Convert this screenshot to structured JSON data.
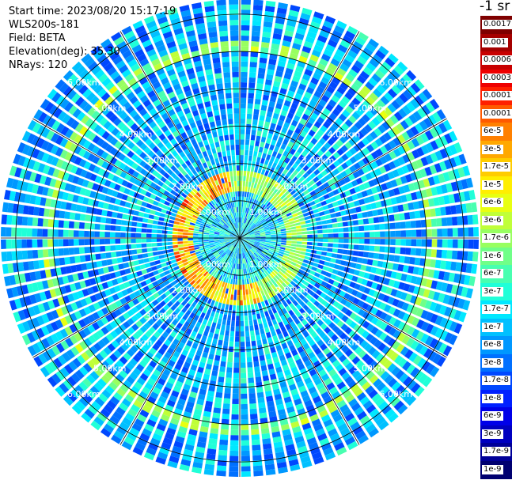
{
  "header": {
    "start_time": "Start time: 2023/08/20 15:17:19",
    "device": "WLS200s-181",
    "field": "Field: BETA",
    "elevation": "Elevation(deg): 35.30",
    "nrays": "NRays: 120"
  },
  "colorbar": {
    "unit": "-1 sr",
    "entries": [
      {
        "label": "0.0017",
        "color": "#7f0000"
      },
      {
        "label": "0.001",
        "color": "#a50000"
      },
      {
        "label": "0.0006",
        "color": "#c80000"
      },
      {
        "label": "0.0003",
        "color": "#ee0000"
      },
      {
        "label": "0.00017",
        "color": "#ff2000"
      },
      {
        "label": "0.0001",
        "color": "#ff5a00"
      },
      {
        "label": "6e-5",
        "color": "#ff8000"
      },
      {
        "label": "3e-5",
        "color": "#ffa800"
      },
      {
        "label": "1.7e-5",
        "color": "#ffcc00"
      },
      {
        "label": "1e-5",
        "color": "#ffee00"
      },
      {
        "label": "6e-6",
        "color": "#e8ff10"
      },
      {
        "label": "3e-6",
        "color": "#c0ff38"
      },
      {
        "label": "1.7e-6",
        "color": "#98ff60"
      },
      {
        "label": "1e-6",
        "color": "#70ff88"
      },
      {
        "label": "6e-7",
        "color": "#48ffb0"
      },
      {
        "label": "3e-7",
        "color": "#20ffd8"
      },
      {
        "label": "1.7e-7",
        "color": "#00e8ff"
      },
      {
        "label": "1e-7",
        "color": "#00c0ff"
      },
      {
        "label": "6e-8",
        "color": "#0098ff"
      },
      {
        "label": "3e-8",
        "color": "#0070ff"
      },
      {
        "label": "1.7e-8",
        "color": "#0048ff"
      },
      {
        "label": "1e-8",
        "color": "#0020ff"
      },
      {
        "label": "6e-9",
        "color": "#0000e8"
      },
      {
        "label": "3e-9",
        "color": "#0000c0"
      },
      {
        "label": "1.7e-9",
        "color": "#000098"
      },
      {
        "label": "1e-9",
        "color": "#000070"
      }
    ]
  },
  "chart_data": {
    "type": "heatmap",
    "projection": "polar-ppi",
    "field": "BETA",
    "n_rays": 120,
    "elevation_deg": 35.3,
    "range_rings_km": [
      1,
      2,
      3,
      4,
      5,
      6
    ],
    "ring_labels": [
      "1.00km",
      "2.00km",
      "3.00km",
      "4.00km",
      "5.00km",
      "6.00km"
    ],
    "max_range_km": 6.4,
    "azimuth_spokes_deg": [
      0,
      30,
      60,
      90,
      120,
      150,
      180,
      210,
      240,
      270,
      300,
      330
    ],
    "color_scale": "log",
    "value_range": [
      1e-09,
      0.0017
    ],
    "background_beta": 1e-07,
    "features": [
      {
        "name": "near-range aerosol ring",
        "range_km": [
          1.25,
          1.75
        ],
        "azimuth_deg": [
          -40,
          20
        ],
        "peak_beta": 6e-05
      },
      {
        "name": "far aerosol ring",
        "range_km": 5.1,
        "beta": 1e-06
      }
    ]
  }
}
